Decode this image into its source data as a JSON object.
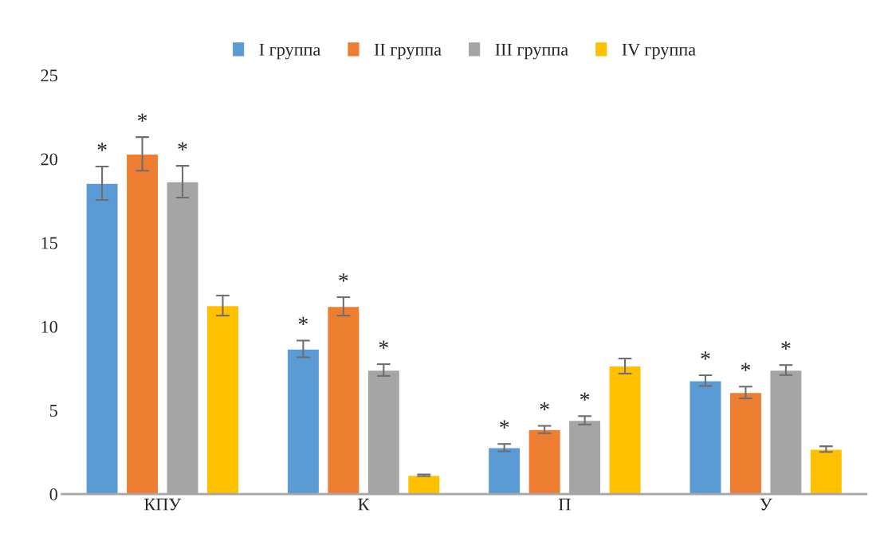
{
  "chart_data": {
    "type": "bar",
    "categories": [
      "КПУ",
      "К",
      "П",
      "У"
    ],
    "series": [
      {
        "name": "I группа",
        "color": "#5b9bd5",
        "values": [
          18.55,
          8.66,
          2.77,
          6.77
        ],
        "errors": [
          1.0,
          0.5,
          0.22,
          0.32
        ],
        "value_labels": [
          "*",
          "*",
          "*",
          "*"
        ]
      },
      {
        "name": "II группа",
        "color": "#ed7d31",
        "values": [
          20.3,
          11.2,
          3.85,
          6.06
        ],
        "errors": [
          1.0,
          0.55,
          0.22,
          0.35
        ],
        "value_labels": [
          "*",
          "*",
          "*",
          "*"
        ]
      },
      {
        "name": "III группа",
        "color": "#a5a5a5",
        "values": [
          18.64,
          7.4,
          4.4,
          7.4
        ],
        "errors": [
          0.95,
          0.35,
          0.25,
          0.3
        ],
        "value_labels": [
          "*",
          "*",
          "*",
          "*"
        ]
      },
      {
        "name": "IV группа",
        "color": "#ffc000",
        "values": [
          11.25,
          1.12,
          7.64,
          2.68
        ],
        "errors": [
          0.6,
          0.05,
          0.45,
          0.17
        ],
        "value_labels": [
          null,
          null,
          null,
          null
        ]
      }
    ],
    "ylim": [
      0,
      25
    ],
    "yticks": [
      0,
      5,
      10,
      15,
      20,
      25
    ],
    "grid": false,
    "legend": "top"
  }
}
